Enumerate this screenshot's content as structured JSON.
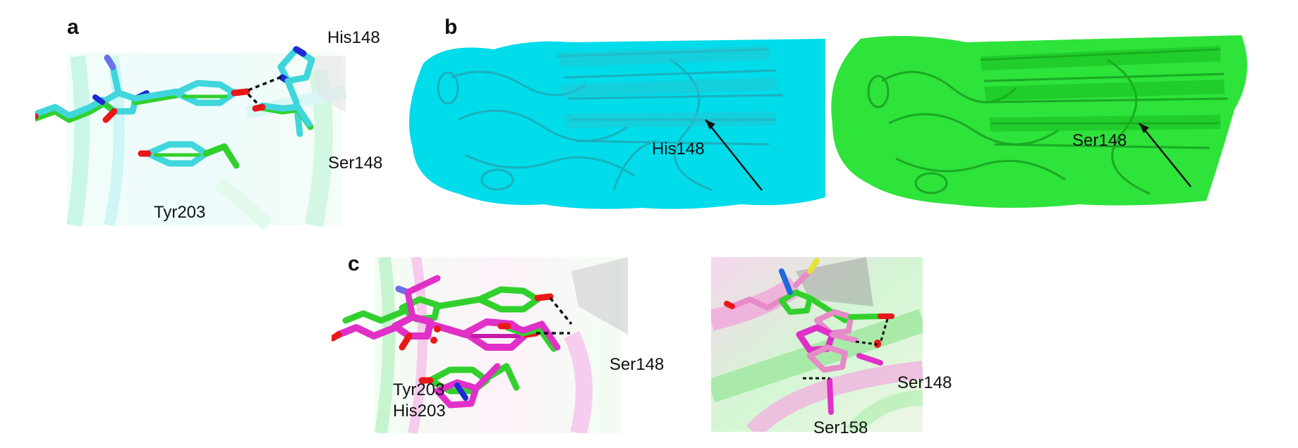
{
  "figure": {
    "panels": {
      "a": {
        "letter": "a",
        "labels": {
          "his": "His148",
          "ser": "Ser148",
          "tyr": "Tyr203"
        }
      },
      "b": {
        "letter": "b",
        "left_label": "His148",
        "right_label": "Ser148"
      },
      "c": {
        "letter": "c",
        "left_labels": {
          "ser": "Ser148",
          "tyr": "Tyr203",
          "his": "His203"
        },
        "right_labels": {
          "ser148": "Ser148",
          "ser158": "Ser158"
        }
      }
    },
    "colors": {
      "cyan": "#3fd6dc",
      "green": "#32d02c",
      "magenta": "#e030c8",
      "pink": "#e68ac8",
      "oxygen": "#e81818",
      "nitrogen": "#1e2ad8",
      "yellow": "#e2e23a"
    }
  }
}
